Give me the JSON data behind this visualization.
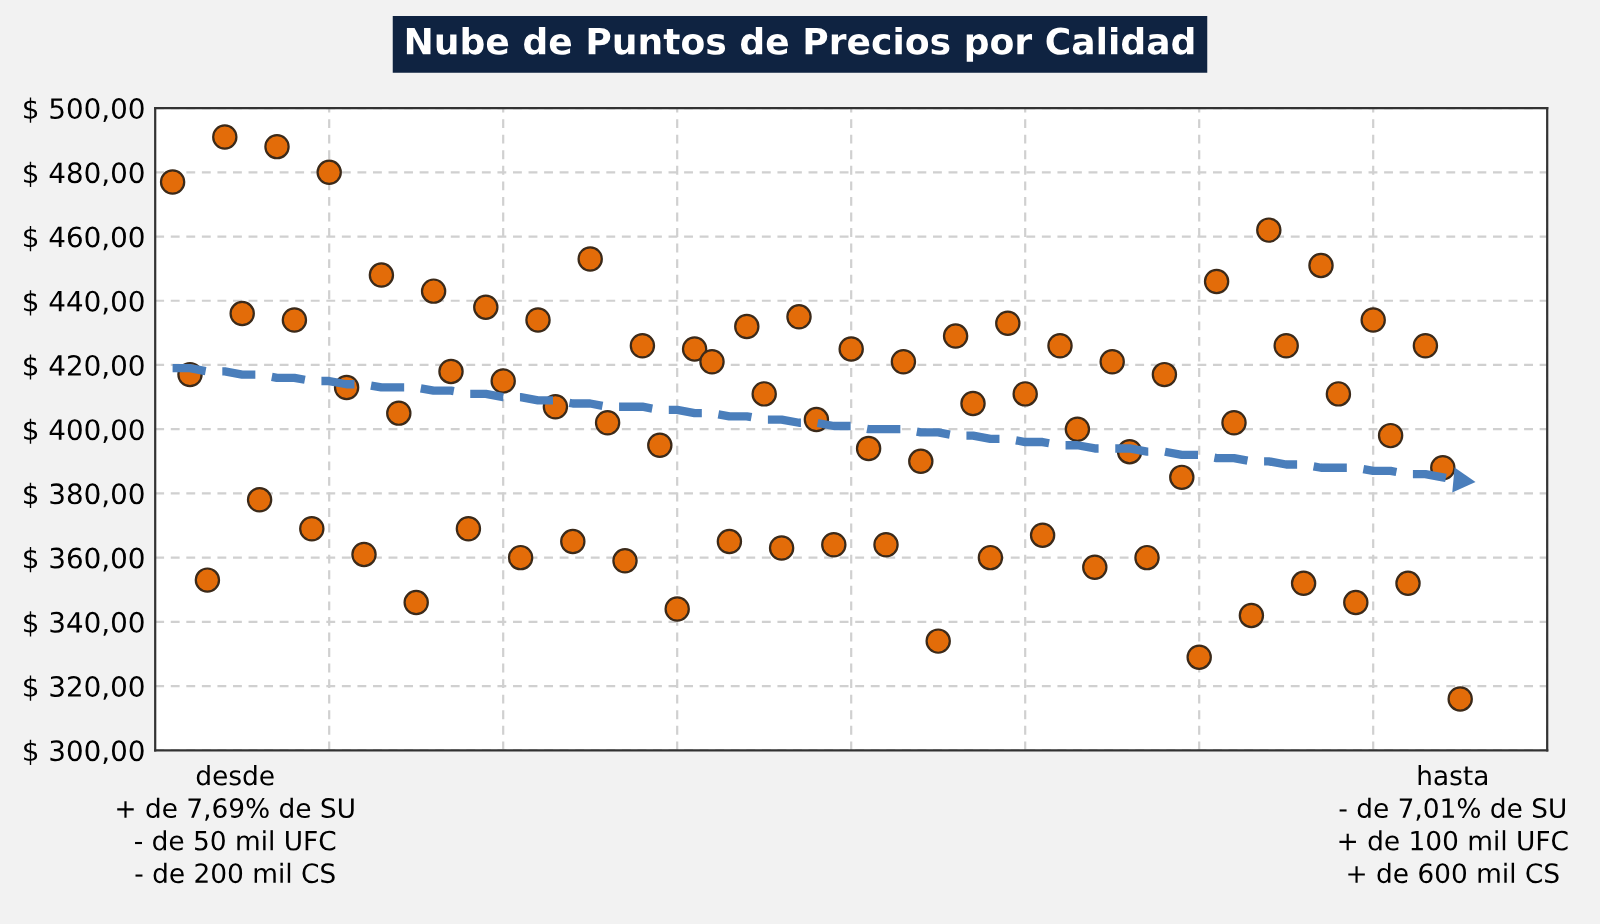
{
  "chart_data": {
    "type": "scatter",
    "title": "Nube de Puntos de Precios por Calidad",
    "categories": [
      null,
      null,
      null,
      null,
      null,
      null,
      null,
      null,
      null,
      null,
      null,
      null,
      null,
      null,
      null,
      null,
      null,
      null,
      null,
      null,
      null,
      null,
      null,
      null,
      null,
      null,
      null,
      null,
      null,
      null,
      null,
      null,
      null,
      null,
      null,
      null,
      null,
      null,
      null,
      null,
      null,
      null,
      null,
      null,
      null,
      null,
      null,
      null,
      null,
      null,
      null,
      null,
      null,
      null,
      null,
      null,
      null,
      null,
      null,
      null,
      null,
      null,
      null,
      null,
      null,
      null,
      null,
      null,
      null,
      null,
      null,
      null,
      null,
      null,
      null
    ],
    "ylim": [
      300,
      500
    ],
    "yticks": [
      {
        "value": 300,
        "label": "$ 300,00"
      },
      {
        "value": 320,
        "label": "$ 320,00"
      },
      {
        "value": 340,
        "label": "$ 340,00"
      },
      {
        "value": 360,
        "label": "$ 360,00"
      },
      {
        "value": 380,
        "label": "$ 380,00"
      },
      {
        "value": 400,
        "label": "$ 400,00"
      },
      {
        "value": 420,
        "label": "$ 420,00"
      },
      {
        "value": 440,
        "label": "$ 440,00"
      },
      {
        "value": 460,
        "label": "$ 460,00"
      },
      {
        "value": 480,
        "label": "$ 480,00"
      },
      {
        "value": 500,
        "label": "$ 500,00"
      }
    ],
    "tick_labels": "y",
    "grid": true,
    "annotations": [
      "desde\n+ de 7,69% de SU\n- de 50 mil UFC\n- de 200 mil CS",
      "hasta\n- de 7,01% de SU\n+ de 100 mil UFC\n+ de 600 mil CS"
    ],
    "series": [
      {
        "color": "#e36c09",
        "marker": "circle",
        "values": [
          477,
          417,
          353,
          491,
          436,
          378,
          488,
          434,
          369,
          480,
          413,
          361,
          448,
          405,
          346,
          443,
          418,
          369,
          438,
          415,
          360,
          434,
          407,
          365,
          453,
          402,
          359,
          426,
          395,
          344,
          425,
          421,
          365,
          432,
          411,
          363,
          435,
          403,
          364,
          425,
          394,
          364,
          421,
          390,
          334,
          429,
          408,
          360,
          433,
          411,
          367,
          426,
          400,
          357,
          421,
          393,
          360,
          417,
          385,
          329,
          446,
          402,
          342,
          462,
          426,
          352,
          451,
          411,
          346,
          434,
          398,
          352,
          426,
          388,
          316
        ]
      },
      {
        "type": "line",
        "color": "#4a7ebb",
        "line_style": "dashed",
        "marker": "none",
        "values": [
          419,
          419,
          418,
          418,
          417,
          417,
          416,
          416,
          415,
          415,
          414,
          414,
          413,
          413,
          413,
          412,
          412,
          411,
          411,
          410,
          410,
          409,
          409,
          408,
          408,
          407,
          407,
          407,
          406,
          406,
          405,
          405,
          404,
          404,
          403,
          403,
          402,
          402,
          401,
          401,
          400,
          400,
          400,
          399,
          399,
          398,
          398,
          397,
          397,
          396,
          396,
          395,
          395,
          394,
          394,
          394,
          393,
          393,
          392,
          392,
          391,
          391,
          390,
          390,
          389,
          389,
          388,
          388,
          388,
          387,
          387,
          386,
          386,
          385,
          384
        ]
      }
    ]
  }
}
